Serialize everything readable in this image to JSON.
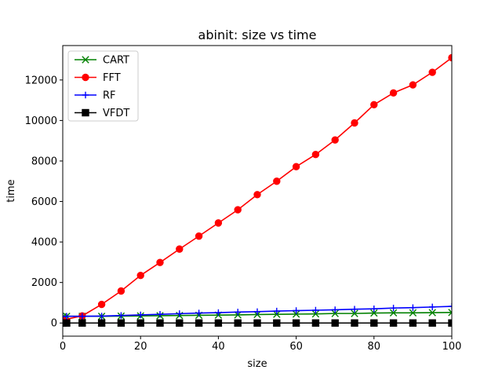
{
  "chart_data": {
    "type": "line",
    "title": "abinit: size vs time",
    "xlabel": "size",
    "ylabel": "time",
    "xlim": [
      0,
      100
    ],
    "ylim": [
      -650,
      13700
    ],
    "xticks": [
      0,
      20,
      40,
      60,
      80,
      100
    ],
    "yticks": [
      0,
      2000,
      4000,
      6000,
      8000,
      10000,
      12000
    ],
    "grid": false,
    "legend_position": "top-left",
    "series": [
      {
        "name": "CART",
        "color": "#008000",
        "marker": "x",
        "x": [
          0,
          1,
          5,
          10,
          15,
          20,
          25,
          30,
          35,
          40,
          45,
          50,
          55,
          60,
          65,
          70,
          75,
          80,
          85,
          90,
          95,
          100
        ],
        "y": [
          300,
          330,
          330,
          330,
          340,
          350,
          360,
          370,
          380,
          390,
          400,
          420,
          430,
          440,
          450,
          470,
          470,
          490,
          500,
          500,
          510,
          520
        ]
      },
      {
        "name": "FFT",
        "color": "#ff0000",
        "marker": "o",
        "x": [
          0,
          5,
          10,
          15,
          20,
          25,
          30,
          35,
          40,
          45,
          50,
          55,
          60,
          65,
          70,
          75,
          80,
          85,
          90,
          95,
          100
        ],
        "y": [
          150,
          350,
          920,
          1580,
          2350,
          2990,
          3650,
          4290,
          4940,
          5590,
          6340,
          7000,
          7720,
          8320,
          9040,
          9880,
          10780,
          11360,
          11760,
          12380,
          13100
        ]
      },
      {
        "name": "RF",
        "color": "#0000ff",
        "marker": "+",
        "x": [
          0,
          1,
          5,
          10,
          15,
          20,
          25,
          30,
          35,
          40,
          45,
          50,
          55,
          60,
          65,
          70,
          75,
          80,
          85,
          90,
          95,
          100
        ],
        "y": [
          320,
          330,
          330,
          340,
          370,
          400,
          430,
          460,
          490,
          510,
          540,
          560,
          590,
          610,
          630,
          650,
          680,
          700,
          740,
          760,
          790,
          820
        ]
      },
      {
        "name": "VFDT",
        "color": "#000000",
        "marker": "s",
        "x": [
          0,
          1,
          5,
          10,
          15,
          20,
          25,
          30,
          35,
          40,
          45,
          50,
          55,
          60,
          65,
          70,
          75,
          80,
          85,
          90,
          95,
          100
        ],
        "y": [
          0,
          0,
          0,
          0,
          0,
          0,
          0,
          0,
          0,
          0,
          0,
          0,
          0,
          0,
          0,
          0,
          0,
          0,
          0,
          0,
          0,
          0
        ]
      }
    ]
  }
}
